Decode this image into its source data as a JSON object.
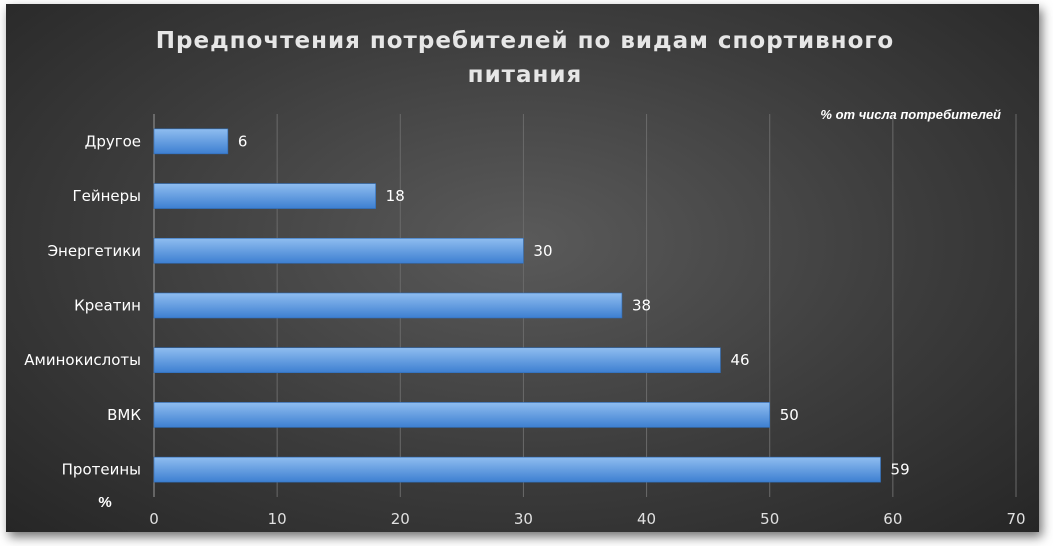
{
  "chart_data": {
    "type": "bar",
    "orientation": "horizontal",
    "title_lines": [
      "Предпочтения потребителей по видам спортивного",
      "питания"
    ],
    "unit_note": "% от числа потребителей",
    "ylabel": "%",
    "categories": [
      "Другое",
      "Гейнеры",
      "Энергетики",
      "Креатин",
      "Аминокислоты",
      "ВМК",
      "Протеины"
    ],
    "values": [
      6,
      18,
      30,
      38,
      46,
      50,
      59
    ],
    "xlim": [
      0,
      70
    ],
    "xticks": [
      0,
      10,
      20,
      30,
      40,
      50,
      60,
      70
    ],
    "grid": true,
    "data_labels": true,
    "colors": {
      "bar_top": "#8fbdf0",
      "bar_bottom": "#3d7fd1",
      "grid": "#6a6a6a",
      "axis": "#9a9a9a"
    }
  }
}
